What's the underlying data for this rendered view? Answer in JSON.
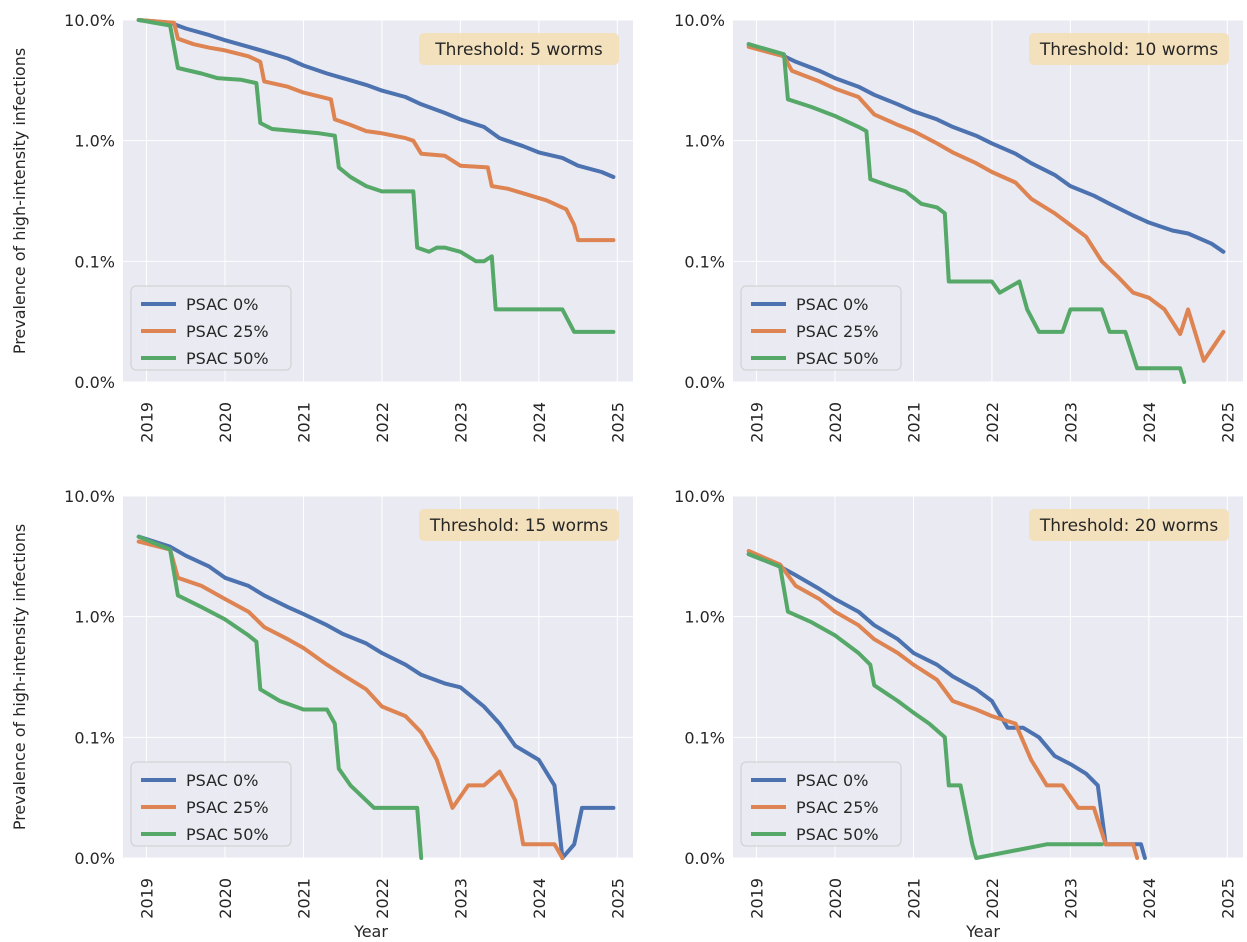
{
  "figure": {
    "ylabel": "Prevalence of high-intensity infections",
    "xlabel": "Year"
  },
  "colors": {
    "PSAC 0%": "#4c72b0",
    "PSAC 25%": "#dd8452",
    "PSAC 50%": "#55a868"
  },
  "chart_data": [
    {
      "type": "line",
      "title": "Threshold: 5 worms",
      "ylabel": "Prevalence of high-intensity infections",
      "xlabel": "",
      "y_scale": "log",
      "ylim": [
        0,
        10.0
      ],
      "yticks": [
        "0.0%",
        "0.1%",
        "1.0%",
        "10.0%"
      ],
      "xlim": [
        2018.7,
        2025.2
      ],
      "xticks": [
        "2019",
        "2020",
        "2021",
        "2022",
        "2023",
        "2024",
        "2025"
      ],
      "legend": "lower-left",
      "grid": true,
      "series": [
        {
          "name": "PSAC 0%",
          "x": [
            2018.9,
            2019.3,
            2019.5,
            2019.8,
            2020.0,
            2020.3,
            2020.5,
            2020.8,
            2021.0,
            2021.3,
            2021.5,
            2021.8,
            2022.0,
            2022.3,
            2022.5,
            2022.8,
            2023.0,
            2023.3,
            2023.5,
            2023.8,
            2024.0,
            2024.3,
            2024.5,
            2024.8,
            2024.95
          ],
          "y": [
            10.0,
            9.5,
            8.5,
            7.5,
            6.8,
            6.0,
            5.5,
            4.8,
            4.2,
            3.6,
            3.3,
            2.9,
            2.6,
            2.3,
            2.0,
            1.7,
            1.5,
            1.3,
            1.05,
            0.9,
            0.8,
            0.72,
            0.62,
            0.55,
            0.5
          ]
        },
        {
          "name": "PSAC 25%",
          "x": [
            2018.9,
            2019.35,
            2019.4,
            2019.6,
            2019.8,
            2020.0,
            2020.3,
            2020.45,
            2020.5,
            2020.8,
            2021.0,
            2021.35,
            2021.4,
            2021.6,
            2021.8,
            2022.0,
            2022.3,
            2022.4,
            2022.5,
            2022.8,
            2023.0,
            2023.35,
            2023.4,
            2023.6,
            2023.9,
            2024.1,
            2024.35,
            2024.45,
            2024.5,
            2024.95
          ],
          "y": [
            10.0,
            9.5,
            7.0,
            6.3,
            5.9,
            5.6,
            5.0,
            4.5,
            3.1,
            2.8,
            2.5,
            2.2,
            1.5,
            1.35,
            1.2,
            1.15,
            1.05,
            1.0,
            0.78,
            0.75,
            0.62,
            0.6,
            0.42,
            0.4,
            0.35,
            0.32,
            0.27,
            0.2,
            0.15,
            0.15
          ]
        },
        {
          "name": "PSAC 50%",
          "x": [
            2018.9,
            2019.3,
            2019.4,
            2019.7,
            2019.9,
            2020.2,
            2020.4,
            2020.45,
            2020.6,
            2020.9,
            2021.2,
            2021.4,
            2021.45,
            2021.6,
            2021.8,
            2022.0,
            2022.2,
            2022.4,
            2022.45,
            2022.6,
            2022.7,
            2022.8,
            2023.0,
            2023.2,
            2023.3,
            2023.4,
            2023.45,
            2024.0,
            2024.3,
            2024.45,
            2024.95
          ],
          "y": [
            10.0,
            9.0,
            4.0,
            3.6,
            3.3,
            3.2,
            3.0,
            1.4,
            1.25,
            1.2,
            1.15,
            1.1,
            0.6,
            0.5,
            0.42,
            0.38,
            0.38,
            0.38,
            0.13,
            0.12,
            0.13,
            0.13,
            0.12,
            0.1,
            0.1,
            0.11,
            0.04,
            0.04,
            0.04,
            0.026,
            0.026
          ]
        }
      ]
    },
    {
      "type": "line",
      "title": "Threshold: 10 worms",
      "ylabel": "",
      "xlabel": "",
      "y_scale": "log",
      "ylim": [
        0,
        10.0
      ],
      "yticks": [
        "0.0%",
        "0.1%",
        "1.0%",
        "10.0%"
      ],
      "xlim": [
        2018.7,
        2025.2
      ],
      "xticks": [
        "2019",
        "2020",
        "2021",
        "2022",
        "2023",
        "2024",
        "2025"
      ],
      "legend": "lower-left",
      "grid": true,
      "series": [
        {
          "name": "PSAC 0%",
          "x": [
            2018.9,
            2019.3,
            2019.5,
            2019.8,
            2020.0,
            2020.3,
            2020.5,
            2020.8,
            2021.0,
            2021.3,
            2021.5,
            2021.8,
            2022.0,
            2022.3,
            2022.5,
            2022.8,
            2023.0,
            2023.3,
            2023.5,
            2023.8,
            2024.0,
            2024.3,
            2024.5,
            2024.8,
            2024.95
          ],
          "y": [
            6.3,
            5.2,
            4.5,
            3.8,
            3.3,
            2.8,
            2.4,
            2.0,
            1.75,
            1.5,
            1.3,
            1.1,
            0.95,
            0.78,
            0.65,
            0.52,
            0.42,
            0.35,
            0.3,
            0.24,
            0.21,
            0.18,
            0.17,
            0.14,
            0.12
          ]
        },
        {
          "name": "PSAC 25%",
          "x": [
            2018.9,
            2019.35,
            2019.45,
            2019.8,
            2020.0,
            2020.3,
            2020.5,
            2020.8,
            2021.0,
            2021.3,
            2021.5,
            2021.8,
            2022.0,
            2022.3,
            2022.5,
            2022.8,
            2023.0,
            2023.2,
            2023.4,
            2023.6,
            2023.8,
            2024.0,
            2024.2,
            2024.4,
            2024.5,
            2024.7,
            2024.95
          ],
          "y": [
            6.0,
            5.0,
            3.8,
            3.1,
            2.7,
            2.3,
            1.65,
            1.35,
            1.2,
            0.95,
            0.8,
            0.65,
            0.55,
            0.45,
            0.33,
            0.25,
            0.2,
            0.16,
            0.1,
            0.075,
            0.055,
            0.05,
            0.04,
            0.025,
            0.04,
            0.015,
            0.026
          ]
        },
        {
          "name": "PSAC 50%",
          "x": [
            2018.9,
            2019.35,
            2019.4,
            2019.7,
            2020.0,
            2020.3,
            2020.4,
            2020.45,
            2020.7,
            2020.9,
            2021.1,
            2021.3,
            2021.4,
            2021.45,
            2021.8,
            2022.0,
            2022.1,
            2022.35,
            2022.45,
            2022.6,
            2022.9,
            2023.0,
            2023.4,
            2023.5,
            2023.7,
            2023.85,
            2023.95,
            2024.4,
            2024.45
          ],
          "y": [
            6.3,
            5.2,
            2.2,
            1.9,
            1.6,
            1.3,
            1.2,
            0.48,
            0.42,
            0.38,
            0.3,
            0.28,
            0.25,
            0.068,
            0.068,
            0.068,
            0.055,
            0.068,
            0.04,
            0.026,
            0.026,
            0.04,
            0.04,
            0.026,
            0.026,
            0.013,
            0.013,
            0.013,
            0.0
          ]
        }
      ]
    },
    {
      "type": "line",
      "title": "Threshold: 15 worms",
      "ylabel": "Prevalence of high-intensity infections",
      "xlabel": "",
      "y_scale": "log",
      "ylim": [
        0,
        10.0
      ],
      "yticks": [
        "0.0%",
        "0.1%",
        "1.0%",
        "10.0%"
      ],
      "xlim": [
        2018.7,
        2025.2
      ],
      "xticks": [
        "2019",
        "2020",
        "2021",
        "2022",
        "2023",
        "2024",
        "2025"
      ],
      "legend": "lower-left",
      "grid": true,
      "series": [
        {
          "name": "PSAC 0%",
          "x": [
            2018.9,
            2019.3,
            2019.5,
            2019.8,
            2020.0,
            2020.3,
            2020.5,
            2020.8,
            2021.0,
            2021.3,
            2021.5,
            2021.8,
            2022.0,
            2022.3,
            2022.5,
            2022.8,
            2023.0,
            2023.3,
            2023.5,
            2023.7,
            2024.0,
            2024.2,
            2024.3,
            2024.45,
            2024.55,
            2024.95
          ],
          "y": [
            4.6,
            3.8,
            3.2,
            2.6,
            2.1,
            1.8,
            1.5,
            1.2,
            1.05,
            0.85,
            0.72,
            0.6,
            0.5,
            0.4,
            0.33,
            0.28,
            0.26,
            0.18,
            0.13,
            0.085,
            0.065,
            0.04,
            0.0,
            0.013,
            0.026,
            0.026
          ]
        },
        {
          "name": "PSAC 25%",
          "x": [
            2018.9,
            2019.3,
            2019.4,
            2019.7,
            2020.0,
            2020.3,
            2020.5,
            2020.8,
            2021.0,
            2021.3,
            2021.5,
            2021.8,
            2022.0,
            2022.3,
            2022.5,
            2022.7,
            2022.9,
            2023.1,
            2023.3,
            2023.5,
            2023.7,
            2023.8,
            2024.0,
            2024.2,
            2024.3
          ],
          "y": [
            4.2,
            3.6,
            2.1,
            1.8,
            1.4,
            1.1,
            0.82,
            0.65,
            0.55,
            0.4,
            0.33,
            0.25,
            0.18,
            0.15,
            0.11,
            0.065,
            0.026,
            0.04,
            0.04,
            0.052,
            0.03,
            0.013,
            0.013,
            0.013,
            0.0
          ]
        },
        {
          "name": "PSAC 50%",
          "x": [
            2018.9,
            2019.3,
            2019.4,
            2019.7,
            2020.0,
            2020.3,
            2020.4,
            2020.45,
            2020.7,
            2021.0,
            2021.3,
            2021.4,
            2021.45,
            2021.6,
            2021.9,
            2022.2,
            2022.45,
            2022.5
          ],
          "y": [
            4.6,
            3.6,
            1.5,
            1.2,
            0.95,
            0.7,
            0.62,
            0.25,
            0.2,
            0.17,
            0.17,
            0.13,
            0.055,
            0.04,
            0.026,
            0.026,
            0.026,
            0.0
          ]
        }
      ]
    },
    {
      "type": "line",
      "title": "Threshold: 20 worms",
      "ylabel": "",
      "xlabel": "",
      "y_scale": "log",
      "ylim": [
        0,
        10.0
      ],
      "yticks": [
        "0.0%",
        "0.1%",
        "1.0%",
        "10.0%"
      ],
      "xlim": [
        2018.7,
        2025.2
      ],
      "xticks": [
        "2019",
        "2020",
        "2021",
        "2022",
        "2023",
        "2024",
        "2025"
      ],
      "legend": "lower-left",
      "grid": true,
      "series": [
        {
          "name": "PSAC 0%",
          "x": [
            2018.9,
            2019.3,
            2019.5,
            2019.8,
            2020.0,
            2020.3,
            2020.5,
            2020.8,
            2021.0,
            2021.3,
            2021.5,
            2021.8,
            2022.0,
            2022.2,
            2022.4,
            2022.6,
            2022.8,
            2023.0,
            2023.2,
            2023.35,
            2023.45,
            2023.9,
            2023.95
          ],
          "y": [
            3.3,
            2.6,
            2.2,
            1.7,
            1.4,
            1.1,
            0.85,
            0.65,
            0.5,
            0.4,
            0.32,
            0.25,
            0.2,
            0.12,
            0.12,
            0.1,
            0.07,
            0.06,
            0.05,
            0.04,
            0.013,
            0.013,
            0.0
          ]
        },
        {
          "name": "PSAC 25%",
          "x": [
            2018.9,
            2019.3,
            2019.5,
            2019.8,
            2020.0,
            2020.3,
            2020.5,
            2020.8,
            2021.0,
            2021.3,
            2021.5,
            2021.8,
            2022.0,
            2022.3,
            2022.5,
            2022.7,
            2022.9,
            2023.1,
            2023.3,
            2023.45,
            2023.8,
            2023.85
          ],
          "y": [
            3.5,
            2.7,
            1.8,
            1.4,
            1.1,
            0.85,
            0.65,
            0.5,
            0.4,
            0.3,
            0.2,
            0.17,
            0.15,
            0.13,
            0.065,
            0.04,
            0.04,
            0.026,
            0.026,
            0.013,
            0.013,
            0.0
          ]
        },
        {
          "name": "PSAC 50%",
          "x": [
            2018.9,
            2019.3,
            2019.4,
            2019.7,
            2020.0,
            2020.3,
            2020.45,
            2020.5,
            2020.8,
            2021.0,
            2021.2,
            2021.4,
            2021.45,
            2021.6,
            2021.75,
            2021.8,
            2022.7,
            2023.4
          ],
          "y": [
            3.3,
            2.6,
            1.1,
            0.9,
            0.7,
            0.5,
            0.4,
            0.27,
            0.2,
            0.16,
            0.13,
            0.1,
            0.04,
            0.04,
            0.013,
            0.0,
            0.013,
            0.013
          ]
        }
      ]
    }
  ]
}
